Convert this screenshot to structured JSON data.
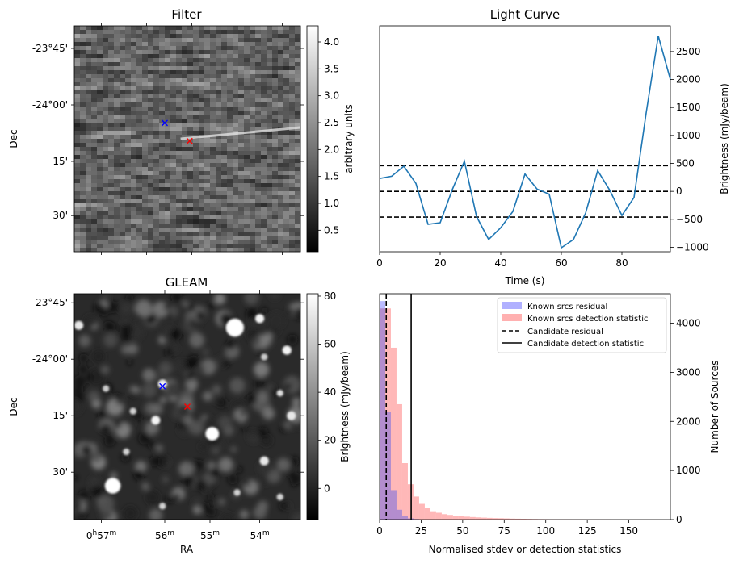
{
  "chart_data": [
    {
      "type": "heatmap",
      "title": "Filter",
      "ylabel": "Dec",
      "ytick_labels": [
        "-23°45'",
        "-24°00'",
        "15'",
        "30'"
      ],
      "colorbar": {
        "label": "arbitrary units",
        "range": [
          0.1,
          4.3
        ],
        "ticks": [
          0.5,
          1.0,
          1.5,
          2.0,
          2.5,
          3.0,
          3.5,
          4.0
        ],
        "tick_labels": [
          "0.5",
          "1.0",
          "1.5",
          "2.0",
          "2.5",
          "3.0",
          "3.5",
          "4.0"
        ],
        "cmap": "gray"
      },
      "markers": [
        {
          "symbol": "x",
          "color": "#0000ff",
          "x": 0.4,
          "y": 0.43
        },
        {
          "symbol": "x",
          "color": "#ff0000",
          "x": 0.51,
          "y": 0.51
        }
      ]
    },
    {
      "type": "line",
      "title": "Light Curve",
      "xlabel": "Time (s)",
      "ylabel": "Brightness (mJy/beam)",
      "xlim": [
        0,
        96
      ],
      "ylim": [
        -1080,
        2960
      ],
      "xticks": [
        0,
        20,
        40,
        60,
        80
      ],
      "xtick_labels": [
        "0",
        "20",
        "40",
        "60",
        "80"
      ],
      "yticks": [
        -1000,
        -500,
        0,
        500,
        1000,
        1500,
        2000,
        2500
      ],
      "ytick_labels": [
        "−1000",
        "−500",
        "0",
        "500",
        "1000",
        "1500",
        "2000",
        "2500"
      ],
      "series": [
        {
          "color": "#1f77b4",
          "x": [
            0,
            4,
            8,
            12,
            16,
            20,
            24,
            28,
            32,
            36,
            40,
            44,
            48,
            52,
            56,
            60,
            64,
            68,
            72,
            76,
            80,
            84,
            88,
            92,
            96
          ],
          "y": [
            230,
            270,
            450,
            140,
            -590,
            -560,
            30,
            540,
            -450,
            -860,
            -650,
            -360,
            310,
            40,
            -50,
            -1010,
            -860,
            -390,
            370,
            20,
            -430,
            -110,
            1400,
            2780,
            2000
          ]
        }
      ],
      "hlines": [
        {
          "y": 460,
          "style": "dashed",
          "color": "#000000"
        },
        {
          "y": 0,
          "style": "dashed",
          "color": "#000000"
        },
        {
          "y": -460,
          "style": "dashed",
          "color": "#000000"
        }
      ],
      "grid": false
    },
    {
      "type": "heatmap",
      "title": "GLEAM",
      "xlabel": "RA",
      "ylabel": "Dec",
      "ytick_labels": [
        "-23°45'",
        "-24°00'",
        "15'",
        "30'"
      ],
      "xtick_labels": [
        {
          "main": "0",
          "h": "h",
          "val": "57",
          "unit": "m"
        },
        {
          "main": "",
          "h": "",
          "val": "56",
          "unit": "m"
        },
        {
          "main": "",
          "h": "",
          "val": "55",
          "unit": "m"
        },
        {
          "main": "",
          "h": "",
          "val": "54",
          "unit": "m"
        }
      ],
      "colorbar": {
        "label": "Brightness (mJy/beam)",
        "range": [
          -13,
          81
        ],
        "ticks": [
          0,
          20,
          40,
          60,
          80
        ],
        "tick_labels": [
          "0",
          "20",
          "40",
          "60",
          "80"
        ],
        "cmap": "gray"
      },
      "markers": [
        {
          "symbol": "x",
          "color": "#0000ff",
          "x": 0.39,
          "y": 0.41
        },
        {
          "symbol": "x",
          "color": "#ff0000",
          "x": 0.5,
          "y": 0.5
        }
      ],
      "sources": [
        {
          "x": 0.71,
          "y": 0.15,
          "r": 0.04,
          "v": 1.0
        },
        {
          "x": 0.82,
          "y": 0.11,
          "r": 0.02,
          "v": 0.9
        },
        {
          "x": 0.94,
          "y": 0.25,
          "r": 0.02,
          "v": 0.9
        },
        {
          "x": 0.61,
          "y": 0.62,
          "r": 0.03,
          "v": 1.0
        },
        {
          "x": 0.17,
          "y": 0.85,
          "r": 0.035,
          "v": 1.0
        },
        {
          "x": 0.36,
          "y": 0.56,
          "r": 0.02,
          "v": 0.9
        },
        {
          "x": 0.39,
          "y": 0.4,
          "r": 0.02,
          "v": 0.85
        },
        {
          "x": 0.84,
          "y": 0.74,
          "r": 0.02,
          "v": 0.8
        },
        {
          "x": 0.91,
          "y": 0.44,
          "r": 0.015,
          "v": 0.7
        },
        {
          "x": 0.96,
          "y": 0.54,
          "r": 0.02,
          "v": 0.8
        },
        {
          "x": 0.02,
          "y": 0.14,
          "r": 0.02,
          "v": 0.8
        },
        {
          "x": 0.26,
          "y": 0.52,
          "r": 0.015,
          "v": 0.6
        },
        {
          "x": 0.39,
          "y": 0.94,
          "r": 0.015,
          "v": 0.6
        },
        {
          "x": 0.72,
          "y": 0.88,
          "r": 0.015,
          "v": 0.6
        },
        {
          "x": 0.91,
          "y": 0.9,
          "r": 0.015,
          "v": 0.6
        },
        {
          "x": 0.23,
          "y": 0.7,
          "r": 0.015,
          "v": 0.6
        },
        {
          "x": 0.84,
          "y": 0.28,
          "r": 0.015,
          "v": 0.55
        },
        {
          "x": 0.14,
          "y": 0.42,
          "r": 0.015,
          "v": 0.55
        }
      ]
    },
    {
      "type": "bar",
      "xlabel": "Normalised stdev or detection statistics",
      "ylabel": "Number of Sources",
      "xlim": [
        0,
        175
      ],
      "ylim": [
        0,
        4600
      ],
      "xticks": [
        0,
        25,
        50,
        75,
        100,
        125,
        150
      ],
      "xtick_labels": [
        "0",
        "25",
        "50",
        "75",
        "100",
        "125",
        "150"
      ],
      "yticks": [
        0,
        1000,
        2000,
        3000,
        4000
      ],
      "ytick_labels": [
        "0",
        "1000",
        "2000",
        "3000",
        "4000"
      ],
      "legend_placement": "top-right",
      "bin_width": 3.4,
      "series": [
        {
          "name": "Known srcs residual",
          "color": "#b0b0ff",
          "counts": [
            4450,
            2200,
            600,
            200,
            70,
            25,
            10
          ]
        },
        {
          "name": "Known srcs detection statistic",
          "color": "#ffb0b0",
          "counts": [
            4300,
            4300,
            3500,
            2350,
            1150,
            720,
            470,
            320,
            230,
            170,
            140,
            110,
            95,
            80,
            70,
            60,
            52,
            45,
            40,
            35,
            30,
            28,
            24,
            20,
            18,
            16,
            14,
            12,
            10,
            9,
            8,
            7,
            6,
            6,
            5,
            5,
            4,
            4,
            3,
            3,
            3,
            2,
            2,
            2,
            2,
            2,
            1,
            1,
            1,
            1
          ]
        }
      ],
      "vlines": [
        {
          "name": "Candidate residual",
          "x": 4,
          "style": "dashed",
          "color": "#000000"
        },
        {
          "name": "Candidate detection statistic",
          "x": 19,
          "style": "solid",
          "color": "#000000"
        }
      ]
    }
  ]
}
